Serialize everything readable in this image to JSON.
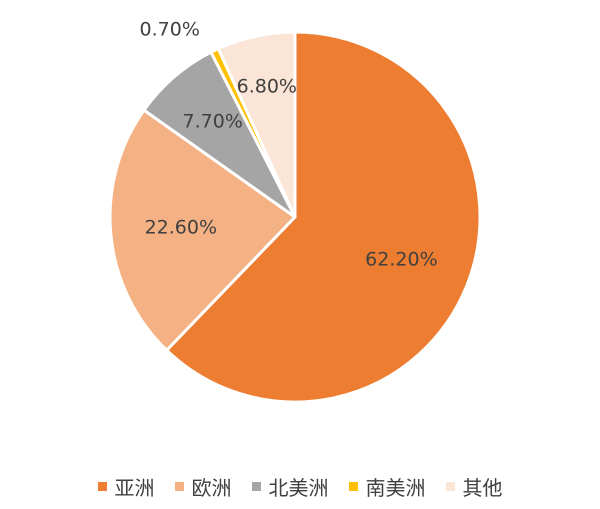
{
  "chart_data": {
    "type": "pie",
    "categories": [
      "亚洲",
      "欧洲",
      "北美洲",
      "南美洲",
      "其他"
    ],
    "series": [
      {
        "values": [
          62.2,
          22.6,
          7.7,
          0.7,
          6.8
        ]
      }
    ],
    "data_labels": [
      "62.20%",
      "22.60%",
      "7.70%",
      "0.70%",
      "6.80%"
    ],
    "colors": [
      "#ED7D31",
      "#F4B183",
      "#A5A5A5",
      "#FFC000",
      "#FBE5D6"
    ],
    "start_angle_deg": 0,
    "direction": "clockwise",
    "legend_position": "bottom"
  }
}
